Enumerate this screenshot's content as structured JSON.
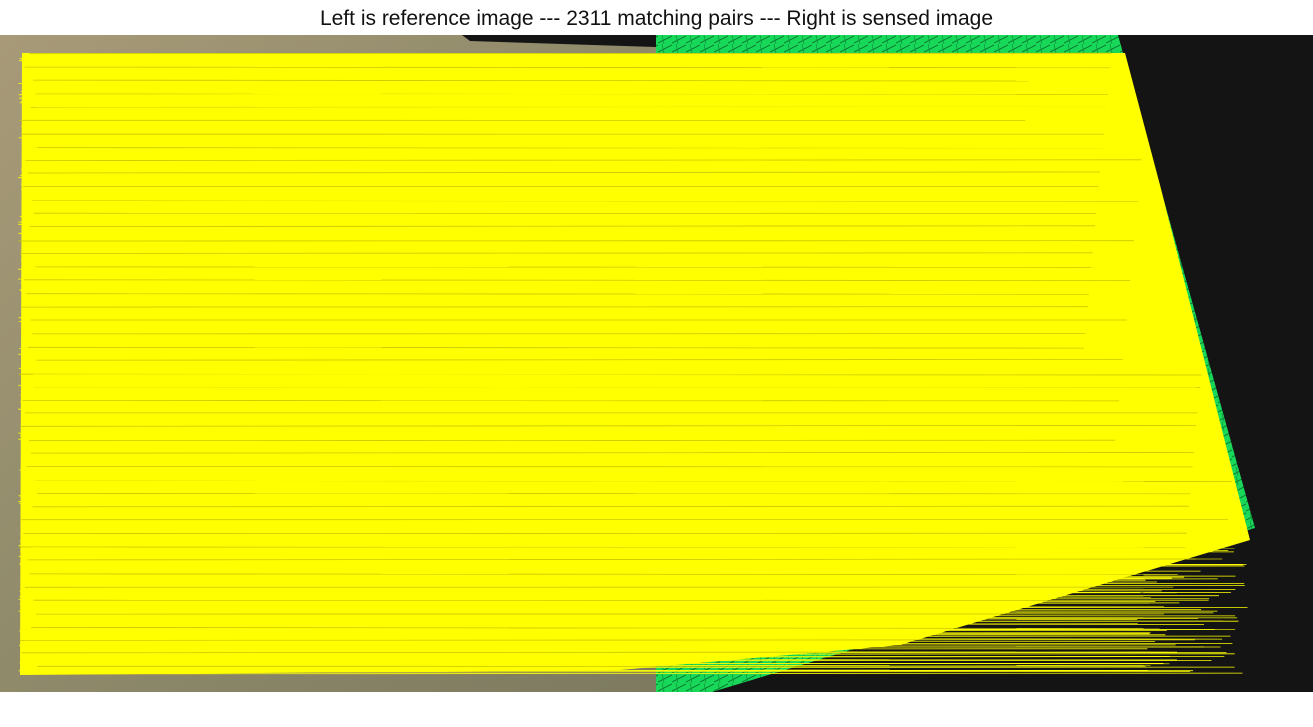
{
  "title": "Left is reference image --- 2311 matching pairs --- Right is sensed image",
  "figure": {
    "match_count": 2311,
    "line_color": "#ffff00",
    "reference_tint": "#9a8f70",
    "sensed_color": "#19e060",
    "background_color": "#141414"
  }
}
